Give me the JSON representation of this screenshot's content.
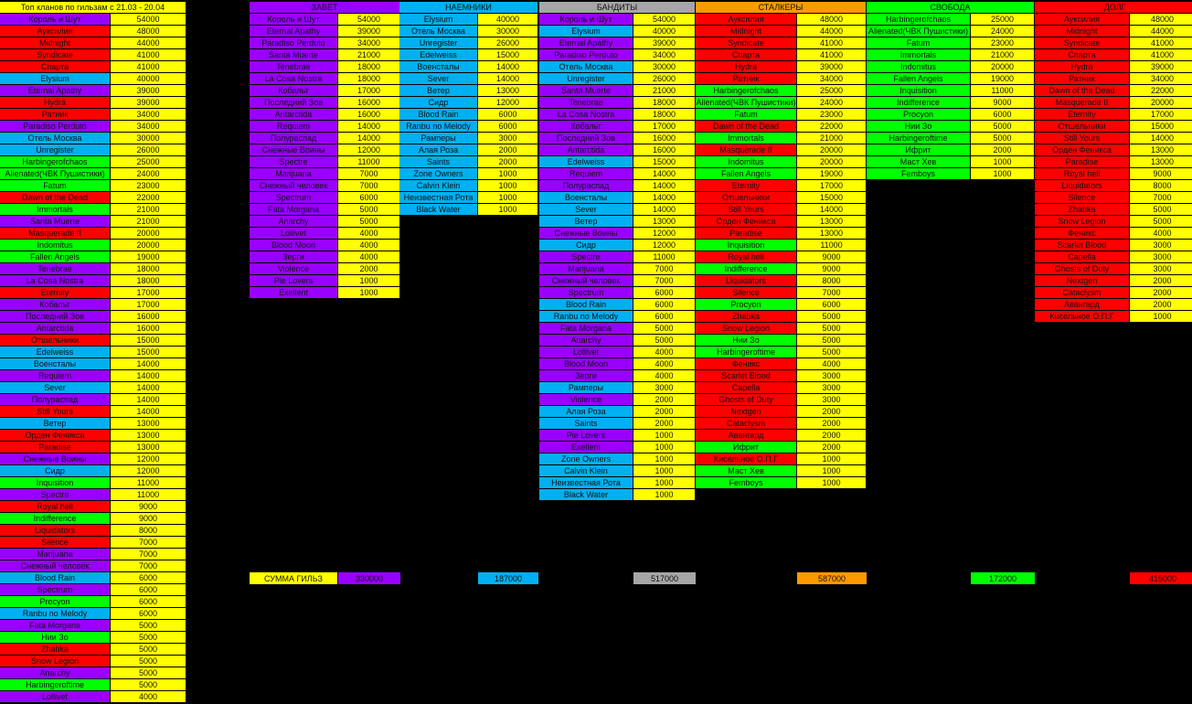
{
  "colors": {
    "purple": "#9900ff",
    "red": "#ff0000",
    "blue": "#00b0f0",
    "green": "#00ff00",
    "yellow": "#ffff00",
    "gray": "#a6a6a6",
    "orange": "#ff9900"
  },
  "overall": {
    "title": "Топ кланов по гильзам с 21.03 - 20.04",
    "rows": [
      [
        "Король и Шут",
        54000,
        "purple"
      ],
      [
        "Ауксилия",
        48000,
        "red"
      ],
      [
        "Midnight",
        44000,
        "red"
      ],
      [
        "Syndicate",
        41000,
        "red"
      ],
      [
        "Спарта",
        41000,
        "red"
      ],
      [
        "Elysium",
        40000,
        "blue"
      ],
      [
        "Eternal Apathy",
        39000,
        "purple"
      ],
      [
        "Hydra",
        39000,
        "red"
      ],
      [
        "Ратник",
        34000,
        "red"
      ],
      [
        "Paradiso Perduto",
        34000,
        "purple"
      ],
      [
        "Отель Москва",
        30000,
        "blue"
      ],
      [
        "Unregister",
        26000,
        "blue"
      ],
      [
        "Harbingerofchaos",
        25000,
        "green"
      ],
      [
        "Alienated(ЧВК Пушистики)",
        24000,
        "green"
      ],
      [
        "Fatum",
        23000,
        "green"
      ],
      [
        "Dawn of the Dead",
        22000,
        "red"
      ],
      [
        "Immortals",
        21000,
        "green"
      ],
      [
        "Santa Muerte",
        21000,
        "purple"
      ],
      [
        "Masquerade II",
        20000,
        "red"
      ],
      [
        "Indomitus",
        20000,
        "green"
      ],
      [
        "Fallen Angels",
        19000,
        "green"
      ],
      [
        "Tenebrae",
        18000,
        "purple"
      ],
      [
        "La Cosa Nostra",
        18000,
        "purple"
      ],
      [
        "Eternity",
        17000,
        "red"
      ],
      [
        "Кобальт",
        17000,
        "purple"
      ],
      [
        "Последний Зов",
        16000,
        "purple"
      ],
      [
        "Antarctida",
        16000,
        "purple"
      ],
      [
        "Отшельники",
        15000,
        "red"
      ],
      [
        "Edelweiss",
        15000,
        "blue"
      ],
      [
        "Военсталы",
        14000,
        "blue"
      ],
      [
        "Requiem",
        14000,
        "purple"
      ],
      [
        "Sever",
        14000,
        "blue"
      ],
      [
        "Полураспад",
        14000,
        "purple"
      ],
      [
        "Still Yours",
        14000,
        "red"
      ],
      [
        "Ветер",
        13000,
        "blue"
      ],
      [
        "Орден Феникса",
        13000,
        "red"
      ],
      [
        "Paradise",
        13000,
        "red"
      ],
      [
        "Снежные Воины",
        12000,
        "purple"
      ],
      [
        "Сидр",
        12000,
        "blue"
      ],
      [
        "Inquisition",
        11000,
        "green"
      ],
      [
        "Spectre",
        11000,
        "purple"
      ],
      [
        "Royal hell",
        9000,
        "red"
      ],
      [
        "Indifference",
        9000,
        "green"
      ],
      [
        "Liquidators",
        8000,
        "red"
      ],
      [
        "Silence",
        7000,
        "red"
      ],
      [
        "Marijuana",
        7000,
        "purple"
      ],
      [
        "Снежный человек",
        7000,
        "purple"
      ],
      [
        "Blood Rain",
        6000,
        "blue"
      ],
      [
        "Spectrum",
        6000,
        "purple"
      ],
      [
        "Procyon",
        6000,
        "green"
      ],
      [
        "Ranbu no Melody",
        6000,
        "blue"
      ],
      [
        "Fata Morgana",
        5000,
        "purple"
      ],
      [
        "Нии Зо",
        5000,
        "green"
      ],
      [
        "Zhabka",
        5000,
        "red"
      ],
      [
        "Snow Legion",
        5000,
        "red"
      ],
      [
        "Anarchy",
        5000,
        "purple"
      ],
      [
        "Harbingeroftime",
        5000,
        "green"
      ],
      [
        "Lollivet",
        4000,
        "purple"
      ]
    ]
  },
  "factions": [
    {
      "key": "zavet",
      "title": "ЗАВЕТ",
      "color": "purple",
      "sum_label": "СУММА ГИЛЬЗ",
      "sum": "330000",
      "rows": [
        [
          "Король и Шут",
          54000,
          "purple"
        ],
        [
          "Eternal Apathy",
          39000,
          "purple"
        ],
        [
          "Paradiso Perduto",
          34000,
          "purple"
        ],
        [
          "Santa Muerte",
          21000,
          "purple"
        ],
        [
          "Tenebrae",
          18000,
          "purple"
        ],
        [
          "La Cosa Nostra",
          18000,
          "purple"
        ],
        [
          "Кобальт",
          17000,
          "purple"
        ],
        [
          "Последний Зов",
          16000,
          "purple"
        ],
        [
          "Antarctida",
          16000,
          "purple"
        ],
        [
          "Requiem",
          14000,
          "purple"
        ],
        [
          "Полураспад",
          14000,
          "purple"
        ],
        [
          "Снежные Воины",
          12000,
          "purple"
        ],
        [
          "Spectre",
          11000,
          "purple"
        ],
        [
          "Marijuana",
          7000,
          "purple"
        ],
        [
          "Снежный человек",
          7000,
          "purple"
        ],
        [
          "Spectrum",
          6000,
          "purple"
        ],
        [
          "Fata Morgana",
          5000,
          "purple"
        ],
        [
          "Anarchy",
          5000,
          "purple"
        ],
        [
          "Lollivet",
          4000,
          "purple"
        ],
        [
          "Blood Moon",
          4000,
          "purple"
        ],
        [
          "Зерги",
          4000,
          "purple"
        ],
        [
          "Violence",
          2000,
          "purple"
        ],
        [
          "Pie Lovers",
          1000,
          "purple"
        ],
        [
          "Exellent",
          1000,
          "purple"
        ]
      ]
    },
    {
      "key": "naemniki",
      "title": "НАЕМНИКИ",
      "color": "blue",
      "sum": "187000",
      "rows": [
        [
          "Elysium",
          40000,
          "blue"
        ],
        [
          "Отель Москва",
          30000,
          "blue"
        ],
        [
          "Unregister",
          26000,
          "blue"
        ],
        [
          "Edelweiss",
          15000,
          "blue"
        ],
        [
          "Военсталы",
          14000,
          "blue"
        ],
        [
          "Sever",
          14000,
          "blue"
        ],
        [
          "Ветер",
          13000,
          "blue"
        ],
        [
          "Сидр",
          12000,
          "blue"
        ],
        [
          "Blood Rain",
          6000,
          "blue"
        ],
        [
          "Ranbu no Melody",
          6000,
          "blue"
        ],
        [
          "Рамперы",
          3000,
          "blue"
        ],
        [
          "Алая Роза",
          2000,
          "blue"
        ],
        [
          "Saints",
          2000,
          "blue"
        ],
        [
          "Zone Owners",
          1000,
          "blue"
        ],
        [
          "Calvin Klein",
          1000,
          "blue"
        ],
        [
          "Неизвестная Рота",
          1000,
          "blue"
        ],
        [
          "Black Water",
          1000,
          "blue"
        ]
      ]
    },
    {
      "key": "bandity",
      "title": "БАНДИТЫ",
      "color": "gray",
      "sum": "517000",
      "rows": [
        [
          "Король и Шут",
          54000,
          "purple"
        ],
        [
          "Elysium",
          40000,
          "blue"
        ],
        [
          "Eternal Apathy",
          39000,
          "purple"
        ],
        [
          "Paradiso Perduto",
          34000,
          "purple"
        ],
        [
          "Отель Москва",
          30000,
          "blue"
        ],
        [
          "Unregister",
          26000,
          "blue"
        ],
        [
          "Santa Muerte",
          21000,
          "purple"
        ],
        [
          "Tenebrae",
          18000,
          "purple"
        ],
        [
          "La Cosa Nostra",
          18000,
          "purple"
        ],
        [
          "Кобальт",
          17000,
          "purple"
        ],
        [
          "Последний Зов",
          16000,
          "purple"
        ],
        [
          "Antarctida",
          16000,
          "purple"
        ],
        [
          "Edelweiss",
          15000,
          "blue"
        ],
        [
          "Requiem",
          14000,
          "purple"
        ],
        [
          "Полураспад",
          14000,
          "purple"
        ],
        [
          "Военсталы",
          14000,
          "blue"
        ],
        [
          "Sever",
          14000,
          "blue"
        ],
        [
          "Ветер",
          13000,
          "blue"
        ],
        [
          "Снежные Воины",
          12000,
          "purple"
        ],
        [
          "Сидр",
          12000,
          "blue"
        ],
        [
          "Spectre",
          11000,
          "purple"
        ],
        [
          "Marijuana",
          7000,
          "purple"
        ],
        [
          "Снежный человек",
          7000,
          "purple"
        ],
        [
          "Spectrum",
          6000,
          "purple"
        ],
        [
          "Blood Rain",
          6000,
          "blue"
        ],
        [
          "Ranbu no Melody",
          6000,
          "blue"
        ],
        [
          "Fata Morgana",
          5000,
          "purple"
        ],
        [
          "Anarchy",
          5000,
          "purple"
        ],
        [
          "Lollivet",
          4000,
          "purple"
        ],
        [
          "Blood Moon",
          4000,
          "purple"
        ],
        [
          "Зерги",
          4000,
          "purple"
        ],
        [
          "Рамперы",
          3000,
          "blue"
        ],
        [
          "Violence",
          2000,
          "purple"
        ],
        [
          "Алая Роза",
          2000,
          "blue"
        ],
        [
          "Saints",
          2000,
          "blue"
        ],
        [
          "Pie Lovers",
          1000,
          "purple"
        ],
        [
          "Exellent",
          1000,
          "purple"
        ],
        [
          "Zone Owners",
          1000,
          "blue"
        ],
        [
          "Calvin Klein",
          1000,
          "blue"
        ],
        [
          "Неизвестная Рота",
          1000,
          "blue"
        ],
        [
          "Black Water",
          1000,
          "blue"
        ]
      ]
    },
    {
      "key": "stalkery",
      "title": "СТАЛКЕРЫ",
      "color": "orange",
      "sum": "587000",
      "rows": [
        [
          "Ауксилия",
          48000,
          "red"
        ],
        [
          "Midnight",
          44000,
          "red"
        ],
        [
          "Syndicate",
          41000,
          "red"
        ],
        [
          "Спарта",
          41000,
          "red"
        ],
        [
          "Hydra",
          39000,
          "red"
        ],
        [
          "Ратник",
          34000,
          "red"
        ],
        [
          "Harbingerofchaos",
          25000,
          "green"
        ],
        [
          "Alienated(ЧВК Пушистики)",
          24000,
          "green"
        ],
        [
          "Fatum",
          23000,
          "green"
        ],
        [
          "Dawn of the Dead",
          22000,
          "red"
        ],
        [
          "Immortals",
          21000,
          "green"
        ],
        [
          "Masquerade II",
          20000,
          "red"
        ],
        [
          "Indomitus",
          20000,
          "green"
        ],
        [
          "Fallen Angels",
          19000,
          "green"
        ],
        [
          "Eternity",
          17000,
          "red"
        ],
        [
          "Отшельники",
          15000,
          "red"
        ],
        [
          "Still Yours",
          14000,
          "red"
        ],
        [
          "Орден Феникса",
          13000,
          "red"
        ],
        [
          "Paradise",
          13000,
          "red"
        ],
        [
          "Inquisition",
          11000,
          "green"
        ],
        [
          "Royal hell",
          9000,
          "red"
        ],
        [
          "Indifference",
          9000,
          "green"
        ],
        [
          "Liquidators",
          8000,
          "red"
        ],
        [
          "Silence",
          7000,
          "red"
        ],
        [
          "Procyon",
          6000,
          "green"
        ],
        [
          "Zhabka",
          5000,
          "red"
        ],
        [
          "Snow Legion",
          5000,
          "red"
        ],
        [
          "Нии Зо",
          5000,
          "green"
        ],
        [
          "Harbingeroftime",
          5000,
          "green"
        ],
        [
          "Феникс",
          4000,
          "red"
        ],
        [
          "Scarlet Blood",
          3000,
          "red"
        ],
        [
          "Capella",
          3000,
          "red"
        ],
        [
          "Ghosts of Duty",
          3000,
          "red"
        ],
        [
          "Nextgen",
          2000,
          "red"
        ],
        [
          "Cataclysm",
          2000,
          "red"
        ],
        [
          "Авангард",
          2000,
          "red"
        ],
        [
          "Ифрит",
          2000,
          "green"
        ],
        [
          "Кисельное О.П.Г",
          1000,
          "red"
        ],
        [
          "Маст Хев",
          1000,
          "green"
        ],
        [
          "Femboys",
          1000,
          "green"
        ]
      ]
    },
    {
      "key": "svoboda",
      "title": "СВОБОДА",
      "color": "green",
      "sum": "172000",
      "rows": [
        [
          "Harbingerofchaos",
          25000,
          "green"
        ],
        [
          "Alienated(ЧВК Пушистики)",
          24000,
          "green"
        ],
        [
          "Fatum",
          23000,
          "green"
        ],
        [
          "Immortals",
          21000,
          "green"
        ],
        [
          "Indomitus",
          20000,
          "green"
        ],
        [
          "Fallen Angels",
          19000,
          "green"
        ],
        [
          "Inquisition",
          11000,
          "green"
        ],
        [
          "Indifference",
          9000,
          "green"
        ],
        [
          "Procyon",
          6000,
          "green"
        ],
        [
          "Нии Зо",
          5000,
          "green"
        ],
        [
          "Harbingeroftime",
          5000,
          "green"
        ],
        [
          "Ифрит",
          2000,
          "green"
        ],
        [
          "Маст Хев",
          1000,
          "green"
        ],
        [
          "Femboys",
          1000,
          "green"
        ]
      ]
    },
    {
      "key": "dolg",
      "title": "ДОЛГ",
      "color": "red",
      "sum": "415000",
      "rows": [
        [
          "Ауксилия",
          48000,
          "red"
        ],
        [
          "Midnight",
          44000,
          "red"
        ],
        [
          "Syndicate",
          41000,
          "red"
        ],
        [
          "Спарта",
          41000,
          "red"
        ],
        [
          "Hydra",
          39000,
          "red"
        ],
        [
          "Ратник",
          34000,
          "red"
        ],
        [
          "Dawn of the Dead",
          22000,
          "red"
        ],
        [
          "Masquerade II",
          20000,
          "red"
        ],
        [
          "Eternity",
          17000,
          "red"
        ],
        [
          "Отшельники",
          15000,
          "red"
        ],
        [
          "Still Yours",
          14000,
          "red"
        ],
        [
          "Орден Феникса",
          13000,
          "red"
        ],
        [
          "Paradise",
          13000,
          "red"
        ],
        [
          "Royal hell",
          9000,
          "red"
        ],
        [
          "Liquidators",
          8000,
          "red"
        ],
        [
          "Silence",
          7000,
          "red"
        ],
        [
          "Zhabka",
          5000,
          "red"
        ],
        [
          "Snow Legion",
          5000,
          "red"
        ],
        [
          "Феникс",
          4000,
          "red"
        ],
        [
          "Scarlet Blood",
          3000,
          "red"
        ],
        [
          "Capella",
          3000,
          "red"
        ],
        [
          "Ghosts of Duty",
          3000,
          "red"
        ],
        [
          "Nextgen",
          2000,
          "red"
        ],
        [
          "Cataclysm",
          2000,
          "red"
        ],
        [
          "Авангард",
          2000,
          "red"
        ],
        [
          "Кисельное О.П.Г",
          1000,
          "red"
        ]
      ]
    }
  ]
}
